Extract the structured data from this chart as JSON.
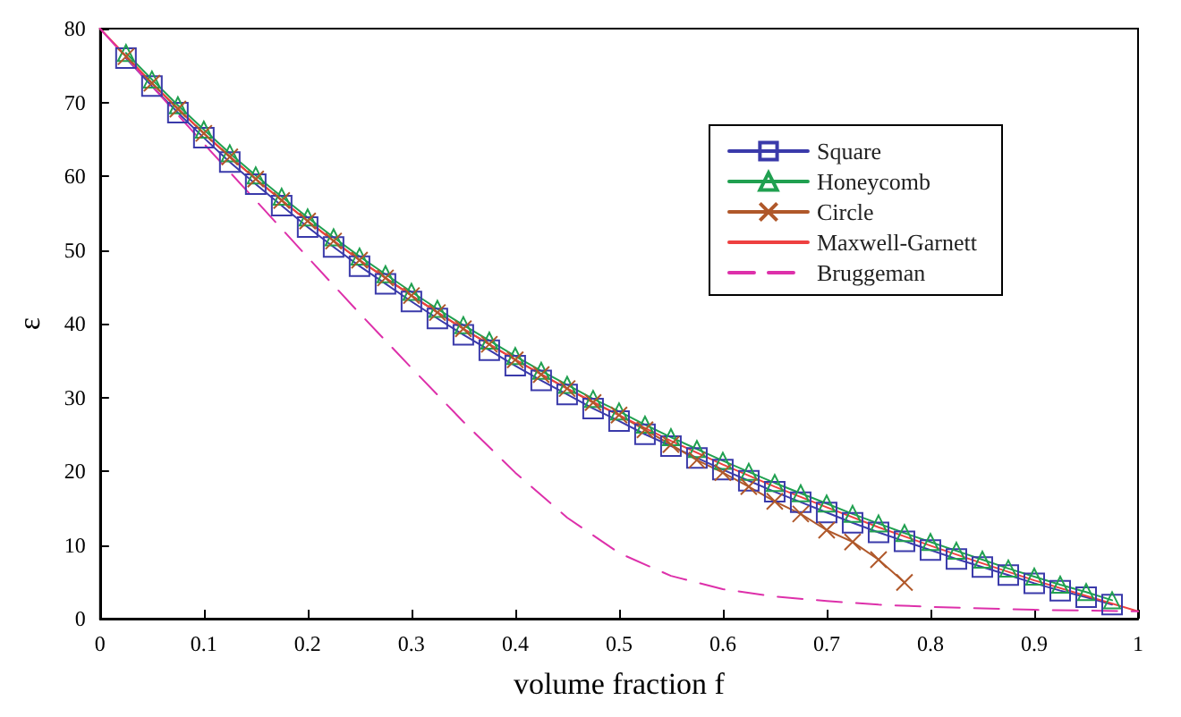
{
  "chart_data": {
    "type": "line",
    "xlabel": "volume fraction f",
    "ylabel": "ε",
    "xlim": [
      0,
      1
    ],
    "xticks": [
      0,
      0.1,
      0.2,
      0.3,
      0.4,
      0.5,
      0.6,
      0.7,
      0.8,
      0.9,
      1
    ],
    "ylim": [
      0,
      80
    ],
    "yticks": [
      0,
      10,
      20,
      30,
      40,
      50,
      60,
      70,
      80
    ],
    "grid": false,
    "legend": "top right",
    "series": [
      {
        "name": "Square",
        "color": "#3a3aaa",
        "marker": "square",
        "line_style": "solid",
        "x": [
          0.025,
          0.05,
          0.075,
          0.1,
          0.125,
          0.15,
          0.175,
          0.2,
          0.225,
          0.25,
          0.275,
          0.3,
          0.325,
          0.35,
          0.375,
          0.4,
          0.425,
          0.45,
          0.475,
          0.5,
          0.525,
          0.55,
          0.575,
          0.6,
          0.625,
          0.65,
          0.675,
          0.7,
          0.725,
          0.75,
          0.775,
          0.8,
          0.825,
          0.85,
          0.875,
          0.9,
          0.925,
          0.95,
          0.975
        ],
        "values": [
          76.0,
          72.2,
          68.6,
          65.2,
          61.9,
          58.9,
          56.0,
          53.1,
          50.4,
          47.8,
          45.4,
          43.0,
          40.7,
          38.5,
          36.4,
          34.3,
          32.3,
          30.4,
          28.5,
          26.8,
          25.0,
          23.4,
          21.8,
          20.2,
          18.7,
          17.2,
          15.8,
          14.4,
          13.0,
          11.7,
          10.5,
          9.3,
          8.1,
          7.0,
          5.9,
          4.8,
          3.8,
          2.9,
          1.9
        ]
      },
      {
        "name": "Honeycomb",
        "color": "#20a050",
        "marker": "triangle",
        "line_style": "solid",
        "x": [
          0.025,
          0.05,
          0.075,
          0.1,
          0.125,
          0.15,
          0.175,
          0.2,
          0.225,
          0.25,
          0.275,
          0.3,
          0.325,
          0.35,
          0.375,
          0.4,
          0.425,
          0.45,
          0.475,
          0.5,
          0.525,
          0.55,
          0.575,
          0.6,
          0.625,
          0.65,
          0.675,
          0.7,
          0.725,
          0.75,
          0.775,
          0.8,
          0.825,
          0.85,
          0.875,
          0.9,
          0.925,
          0.95,
          0.975
        ],
        "values": [
          76.7,
          73.1,
          69.6,
          66.3,
          63.1,
          60.1,
          57.2,
          54.4,
          51.7,
          49.1,
          46.7,
          44.3,
          42.0,
          39.8,
          37.7,
          35.6,
          33.6,
          31.7,
          29.8,
          28.1,
          26.3,
          24.6,
          23.0,
          21.4,
          19.9,
          18.4,
          17.0,
          15.6,
          14.2,
          12.9,
          11.6,
          10.4,
          9.2,
          8.0,
          6.8,
          5.7,
          4.6,
          3.6,
          2.5
        ]
      },
      {
        "name": "Circle",
        "color": "#b0582a",
        "marker": "cross",
        "line_style": "solid",
        "x": [
          0.025,
          0.05,
          0.075,
          0.1,
          0.125,
          0.15,
          0.175,
          0.2,
          0.225,
          0.25,
          0.275,
          0.3,
          0.325,
          0.35,
          0.375,
          0.4,
          0.425,
          0.45,
          0.475,
          0.5,
          0.525,
          0.55,
          0.575,
          0.6,
          0.625,
          0.65,
          0.675,
          0.7,
          0.725,
          0.75,
          0.775
        ],
        "values": [
          76.2,
          72.6,
          69.1,
          65.8,
          62.6,
          59.6,
          56.7,
          53.9,
          51.2,
          48.6,
          46.2,
          43.8,
          41.5,
          39.3,
          37.2,
          35.1,
          33.1,
          31.2,
          29.3,
          27.6,
          25.6,
          23.6,
          21.5,
          19.8,
          17.9,
          15.9,
          14.2,
          12.0,
          10.4,
          8.0,
          4.9
        ]
      },
      {
        "name": "Maxwell-Garnett",
        "color": "#ee4040",
        "marker": "none",
        "line_style": "solid",
        "x": [
          0,
          0.05,
          0.1,
          0.15,
          0.2,
          0.25,
          0.3,
          0.35,
          0.4,
          0.45,
          0.5,
          0.55,
          0.6,
          0.65,
          0.7,
          0.75,
          0.8,
          0.85,
          0.9,
          0.95,
          1
        ],
        "values": [
          80,
          72.6,
          65.8,
          59.6,
          53.9,
          48.6,
          43.8,
          39.3,
          35.1,
          31.2,
          27.6,
          24.1,
          20.9,
          17.9,
          15.1,
          12.4,
          9.9,
          7.5,
          5.2,
          3.1,
          1.0
        ]
      },
      {
        "name": "Bruggeman",
        "color": "#dd30aa",
        "marker": "none",
        "line_style": "dashed",
        "x": [
          0,
          0.05,
          0.1,
          0.15,
          0.2,
          0.25,
          0.3,
          0.35,
          0.4,
          0.45,
          0.5,
          0.55,
          0.6,
          0.65,
          0.7,
          0.75,
          0.8,
          0.85,
          0.9,
          0.95,
          1
        ],
        "values": [
          80,
          72.2,
          64.4,
          56.7,
          49.0,
          41.4,
          34.0,
          26.7,
          19.8,
          13.7,
          8.9,
          5.8,
          4.0,
          3.0,
          2.4,
          1.9,
          1.6,
          1.4,
          1.2,
          1.1,
          1.0
        ]
      }
    ]
  }
}
